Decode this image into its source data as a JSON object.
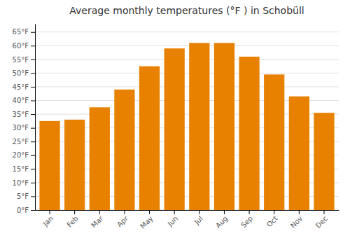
{
  "chart_data": {
    "type": "bar",
    "title": "Average monthly temperatures (°F ) in Schobüll",
    "categories": [
      "Jan",
      "Feb",
      "Mar",
      "Apr",
      "May",
      "Jun",
      "Jul",
      "Aug",
      "Sep",
      "Oct",
      "Nov",
      "Dec"
    ],
    "values": [
      32.5,
      33.0,
      37.5,
      44.0,
      52.5,
      59.0,
      61.0,
      61.0,
      56.0,
      49.5,
      41.5,
      35.5
    ],
    "color": "#E88000",
    "ylim": [
      0,
      68
    ],
    "yticks": [
      {
        "value": 0,
        "label": "0°F"
      },
      {
        "value": 5,
        "label": "5°F"
      },
      {
        "value": 10,
        "label": "10°F"
      },
      {
        "value": 15,
        "label": "15°F"
      },
      {
        "value": 20,
        "label": "20°F"
      },
      {
        "value": 25,
        "label": "25°F"
      },
      {
        "value": 30,
        "label": "30°F"
      },
      {
        "value": 35,
        "label": "35°F"
      },
      {
        "value": 40,
        "label": "40°F"
      },
      {
        "value": 45,
        "label": "45°F"
      },
      {
        "value": 50,
        "label": "50°F"
      },
      {
        "value": 55,
        "label": "55°F"
      },
      {
        "value": 60,
        "label": "60°F"
      },
      {
        "value": 65,
        "label": "65°F"
      }
    ],
    "grid": true
  }
}
